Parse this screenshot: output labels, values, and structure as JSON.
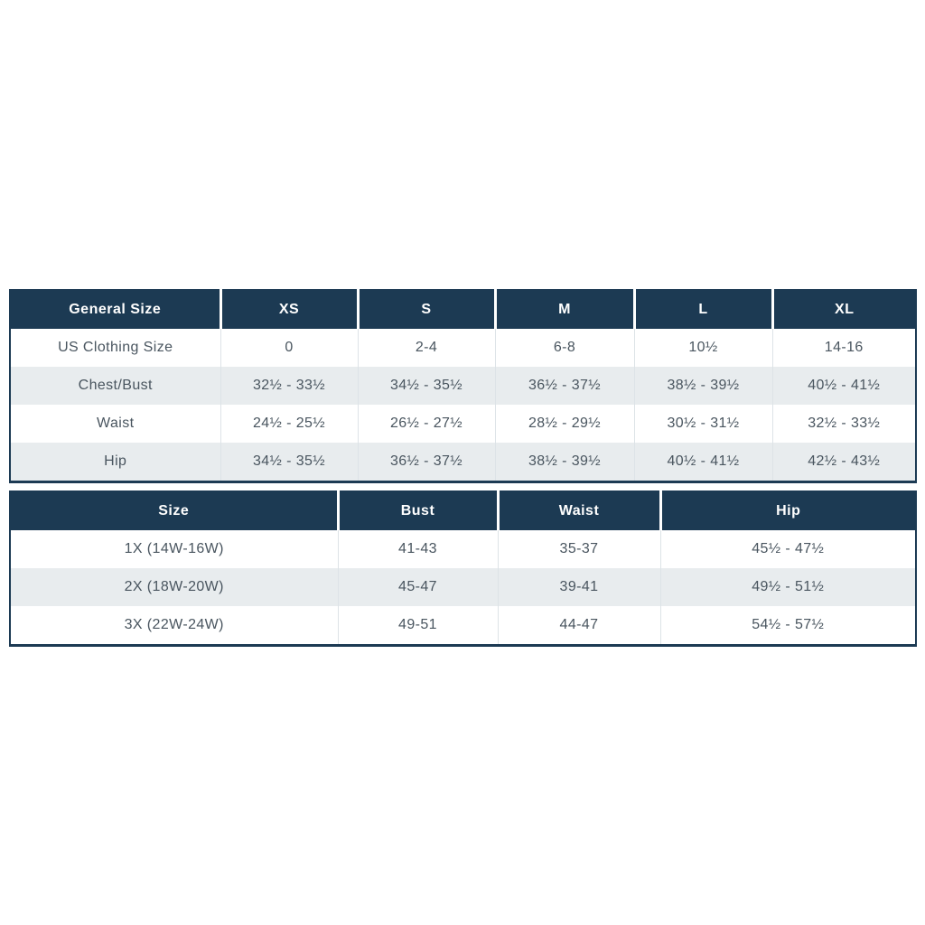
{
  "colors": {
    "header_bg": "#1c3a53",
    "header_text": "#ffffff",
    "body_text": "#49555f",
    "stripe_bg": "#e8ecee",
    "row_bg": "#ffffff",
    "outer_border": "#1c3a53",
    "cell_divider": "#dde3e7"
  },
  "general_table": {
    "columns": [
      "General Size",
      "XS",
      "S",
      "M",
      "L",
      "XL"
    ],
    "rows": [
      {
        "label": "US Clothing Size",
        "values": [
          "0",
          "2-4",
          "6-8",
          "10½",
          "14-16"
        ]
      },
      {
        "label": "Chest/Bust",
        "values": [
          "32½ - 33½",
          "34½ - 35½",
          "36½ - 37½",
          "38½ - 39½",
          "40½ - 41½"
        ]
      },
      {
        "label": "Waist",
        "values": [
          "24½ - 25½",
          "26½ - 27½",
          "28½ - 29½",
          "30½ - 31½",
          "32½ - 33½"
        ]
      },
      {
        "label": "Hip",
        "values": [
          "34½ - 35½",
          "36½ - 37½",
          "38½ - 39½",
          "40½ - 41½",
          "42½ - 43½"
        ]
      }
    ]
  },
  "plus_table": {
    "columns": [
      "Size",
      "Bust",
      "Waist",
      "Hip"
    ],
    "rows": [
      {
        "label": "1X (14W-16W)",
        "values": [
          "41-43",
          "35-37",
          "45½ - 47½"
        ]
      },
      {
        "label": "2X (18W-20W)",
        "values": [
          "45-47",
          "39-41",
          "49½ - 51½"
        ]
      },
      {
        "label": "3X (22W-24W)",
        "values": [
          "49-51",
          "44-47",
          "54½ - 57½"
        ]
      }
    ]
  }
}
